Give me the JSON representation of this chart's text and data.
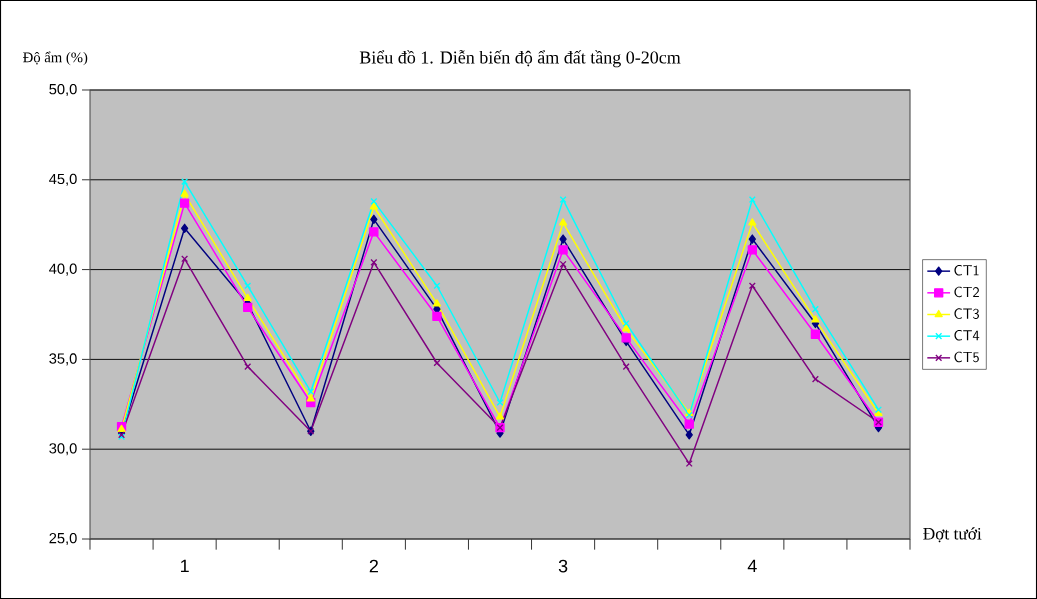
{
  "chart_data": {
    "type": "line",
    "title": "Biểu đồ 1. Diễn biến độ ẩm đất tầng 0-20cm",
    "ylabel": "Độ ẩm (%)",
    "xlabel": "Đợt tưới",
    "categories": [
      null,
      "1",
      null,
      null,
      "2",
      null,
      null,
      "3",
      null,
      null,
      "4",
      null,
      null
    ],
    "series": [
      {
        "name": "CT1",
        "color": "#000080",
        "marker": "diamond",
        "values": [
          30.9,
          42.3,
          38.1,
          31.0,
          42.8,
          37.8,
          30.9,
          41.7,
          36.0,
          30.8,
          41.7,
          37.0,
          31.2
        ]
      },
      {
        "name": "CT2",
        "color": "#ff00ff",
        "marker": "square",
        "values": [
          31.25,
          43.7,
          37.9,
          32.6,
          42.1,
          37.4,
          31.2,
          41.1,
          36.2,
          31.4,
          41.1,
          36.4,
          31.5
        ]
      },
      {
        "name": "CT3",
        "color": "#ffff00",
        "marker": "triangle",
        "values": [
          31.1,
          44.2,
          38.4,
          32.8,
          43.5,
          38.1,
          31.8,
          42.6,
          36.7,
          32.0,
          42.6,
          37.2,
          32.0
        ]
      },
      {
        "name": "CT4",
        "color": "#00ffff",
        "marker": "cross",
        "values": [
          30.7,
          44.9,
          39.1,
          33.2,
          43.8,
          39.1,
          32.6,
          43.9,
          37.0,
          31.9,
          43.9,
          37.8,
          32.2
        ]
      },
      {
        "name": "CT5",
        "color": "#800080",
        "marker": "cross",
        "values": [
          30.8,
          40.6,
          34.6,
          31.0,
          40.4,
          34.8,
          31.2,
          40.3,
          34.6,
          29.2,
          39.1,
          33.9,
          31.5
        ]
      }
    ],
    "ylim": [
      25,
      50
    ],
    "yticks": [
      {
        "value": 25,
        "label": "25,0"
      },
      {
        "value": 30,
        "label": "30,0"
      },
      {
        "value": 35,
        "label": "35,0"
      },
      {
        "value": 40,
        "label": "40,0"
      },
      {
        "value": 45,
        "label": "45,0"
      },
      {
        "value": 50,
        "label": "50,0"
      }
    ],
    "grid": "y",
    "legend": "right",
    "line_style": "solid"
  }
}
